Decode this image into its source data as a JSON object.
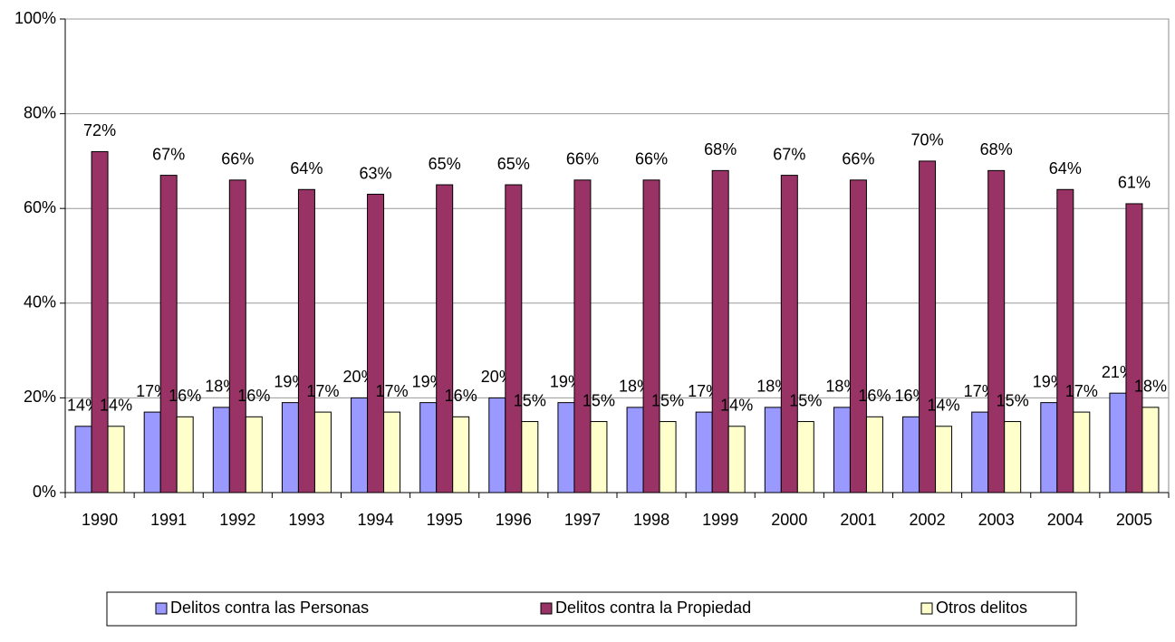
{
  "chart_data": {
    "type": "bar",
    "categories": [
      "1990",
      "1991",
      "1992",
      "1993",
      "1994",
      "1995",
      "1996",
      "1997",
      "1998",
      "1999",
      "2000",
      "2001",
      "2002",
      "2003",
      "2004",
      "2005"
    ],
    "series": [
      {
        "name": "Delitos contra las Personas",
        "color": "#9999ff",
        "values": [
          14,
          17,
          18,
          19,
          20,
          19,
          20,
          19,
          18,
          17,
          18,
          18,
          16,
          17,
          19,
          21
        ],
        "value_labels": [
          "14%",
          "17%",
          "18%",
          "19%",
          "20%",
          "19%",
          "20%",
          "19%",
          "18%",
          "17%",
          "18%",
          "18%",
          "16%",
          "17%",
          "19%",
          "21%"
        ]
      },
      {
        "name": "Delitos contra la Propiedad",
        "color": "#993366",
        "values": [
          72,
          67,
          66,
          64,
          63,
          65,
          65,
          66,
          66,
          68,
          67,
          66,
          70,
          68,
          64,
          61
        ],
        "value_labels": [
          "72%",
          "67%",
          "66%",
          "64%",
          "63%",
          "65%",
          "65%",
          "66%",
          "66%",
          "68%",
          "67%",
          "66%",
          "70%",
          "68%",
          "64%",
          "61%"
        ]
      },
      {
        "name": "Otros delitos",
        "color": "#ffffcc",
        "values": [
          14,
          16,
          16,
          17,
          17,
          16,
          15,
          15,
          15,
          14,
          15,
          16,
          14,
          15,
          17,
          18
        ],
        "value_labels": [
          "14%",
          "16%",
          "16%",
          "17%",
          "17%",
          "16%",
          "15%",
          "15%",
          "15%",
          "14%",
          "15%",
          "16%",
          "14%",
          "15%",
          "17%",
          "18%"
        ]
      }
    ],
    "ylim": [
      0,
      100
    ],
    "yticks": [
      {
        "value": 0,
        "label": "0%"
      },
      {
        "value": 20,
        "label": "20%"
      },
      {
        "value": 40,
        "label": "40%"
      },
      {
        "value": 60,
        "label": "60%"
      },
      {
        "value": 80,
        "label": "80%"
      },
      {
        "value": 100,
        "label": "100%"
      }
    ],
    "grid": true,
    "legend": "bottom"
  }
}
